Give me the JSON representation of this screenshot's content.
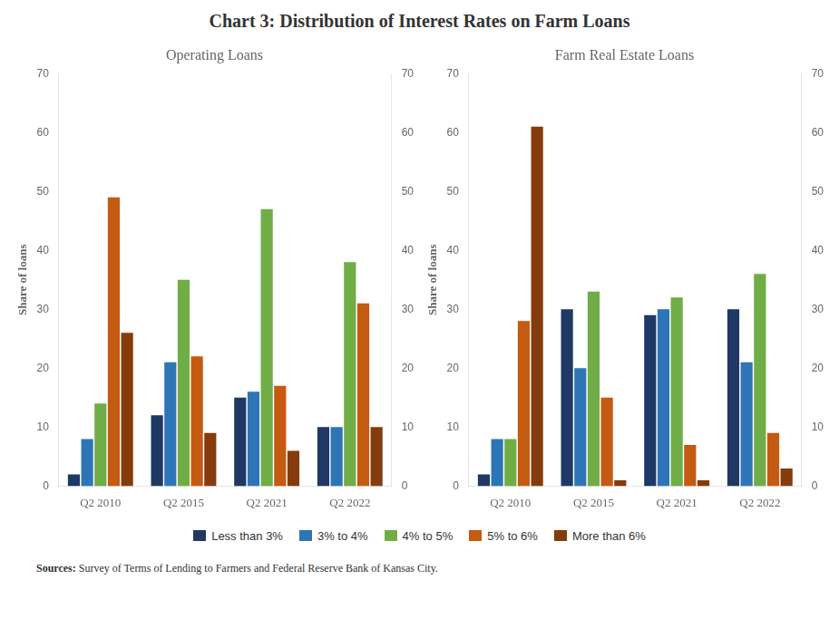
{
  "title": "Chart 3: Distribution of Interest Rates on Farm Loans",
  "legend": "bottom",
  "annotations": [
    "Sources: Survey of Terms of Lending to Farmers and Federal Reserve Bank of Kansas City."
  ],
  "chart_data": [
    {
      "type": "bar",
      "title": "Operating Loans",
      "ylabel": "Share of loans",
      "categories": [
        "Q2 2010",
        "Q2 2015",
        "Q2 2021",
        "Q2 2022"
      ],
      "series": [
        {
          "name": "Less than 3%",
          "color": "#1f3864",
          "values": [
            2,
            12,
            15,
            10
          ]
        },
        {
          "name": "3% to 4%",
          "color": "#2e75b6",
          "values": [
            8,
            21,
            16,
            10
          ]
        },
        {
          "name": "4% to 5%",
          "color": "#70ad47",
          "values": [
            14,
            35,
            47,
            38
          ]
        },
        {
          "name": "5% to 6%",
          "color": "#c55a11",
          "values": [
            49,
            22,
            17,
            31
          ]
        },
        {
          "name": "More than 6%",
          "color": "#843c0c",
          "values": [
            26,
            9,
            6,
            10
          ]
        }
      ],
      "ylim": [
        0,
        70
      ],
      "yticks": [
        0,
        10,
        20,
        30,
        40,
        50,
        60,
        70
      ],
      "y2lim": [
        0,
        70
      ],
      "y2ticks": [
        0,
        10,
        20,
        30,
        40,
        50,
        60,
        70
      ],
      "grid": false
    },
    {
      "type": "bar",
      "title": "Farm Real Estate Loans",
      "ylabel": "Share of loans",
      "categories": [
        "Q2 2010",
        "Q2 2015",
        "Q2 2021",
        "Q2 2022"
      ],
      "series": [
        {
          "name": "Less than 3%",
          "color": "#1f3864",
          "values": [
            2,
            30,
            29,
            30
          ]
        },
        {
          "name": "3% to 4%",
          "color": "#2e75b6",
          "values": [
            8,
            20,
            30,
            21
          ]
        },
        {
          "name": "4% to 5%",
          "color": "#70ad47",
          "values": [
            8,
            33,
            32,
            36
          ]
        },
        {
          "name": "5% to 6%",
          "color": "#c55a11",
          "values": [
            28,
            15,
            7,
            9
          ]
        },
        {
          "name": "More than 6%",
          "color": "#843c0c",
          "values": [
            61,
            1,
            1,
            3
          ]
        }
      ],
      "ylim": [
        0,
        70
      ],
      "yticks": [
        0,
        10,
        20,
        30,
        40,
        50,
        60,
        70
      ],
      "y2lim": [
        0,
        70
      ],
      "y2ticks": [
        0,
        10,
        20,
        30,
        40,
        50,
        60,
        70
      ],
      "grid": false
    }
  ]
}
